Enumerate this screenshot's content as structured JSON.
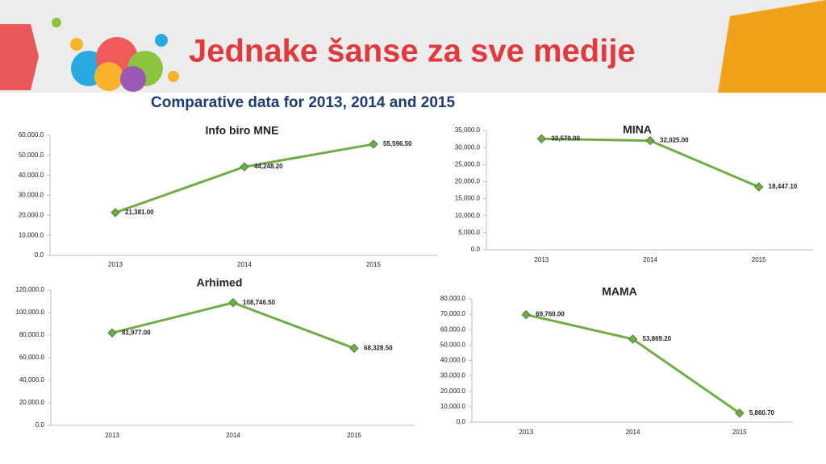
{
  "header": {
    "title": "Jednake šanse za sve medije",
    "subtitle": "Comparative data for 2013, 2014 and 2015"
  },
  "chart_data": [
    {
      "type": "line",
      "title": "Info biro MNE",
      "categories": [
        "2013",
        "2014",
        "2015"
      ],
      "color": "#70ad47",
      "values": [
        21381,
        44248.2,
        55596.5
      ],
      "value_labels": [
        "21,381.00",
        "44,248.20",
        "55,596.50"
      ],
      "ylim": [
        0,
        60000
      ],
      "grid": false,
      "yticks": [
        {
          "value": 0,
          "label": "0.0"
        },
        {
          "value": 10000,
          "label": "10,000.0"
        },
        {
          "value": 20000,
          "label": "20,000.0"
        },
        {
          "value": 30000,
          "label": "30,000.0"
        },
        {
          "value": 40000,
          "label": "40,000.0"
        },
        {
          "value": 50000,
          "label": "50,000.0"
        },
        {
          "value": 60000,
          "label": "60,000.0"
        }
      ]
    },
    {
      "type": "line",
      "title": "MINA",
      "categories": [
        "2013",
        "2014",
        "2015"
      ],
      "color": "#70ad47",
      "values": [
        32570,
        32025,
        18447.1
      ],
      "value_labels": [
        "32,570.00",
        "32,025.00",
        "18,447.10"
      ],
      "ylim": [
        0,
        35000
      ],
      "grid": false,
      "yticks": [
        {
          "value": 0,
          "label": "0.0"
        },
        {
          "value": 5000,
          "label": "5,000.0"
        },
        {
          "value": 10000,
          "label": "10,000.0"
        },
        {
          "value": 15000,
          "label": "15,000.0"
        },
        {
          "value": 20000,
          "label": "20,000.0"
        },
        {
          "value": 25000,
          "label": "25,000.0"
        },
        {
          "value": 30000,
          "label": "30,000.0"
        },
        {
          "value": 35000,
          "label": "35,000.0"
        }
      ]
    },
    {
      "type": "line",
      "title": "Arhimed",
      "categories": [
        "2013",
        "2014",
        "2015"
      ],
      "color": "#70ad47",
      "values": [
        81977,
        108746.5,
        68328.5
      ],
      "value_labels": [
        "81,977.00",
        "108,746.50",
        "68,328.50"
      ],
      "ylim": [
        0,
        120000
      ],
      "grid": false,
      "yticks": [
        {
          "value": 0,
          "label": "0.0"
        },
        {
          "value": 20000,
          "label": "20,000.0"
        },
        {
          "value": 40000,
          "label": "40,000.0"
        },
        {
          "value": 60000,
          "label": "60,000.0"
        },
        {
          "value": 80000,
          "label": "80,000.0"
        },
        {
          "value": 100000,
          "label": "100,000.0"
        },
        {
          "value": 120000,
          "label": "120,000.0"
        }
      ]
    },
    {
      "type": "line",
      "title": "MAMA",
      "categories": [
        "2013",
        "2014",
        "2015"
      ],
      "color": "#70ad47",
      "values": [
        69760,
        53869.2,
        5860.7
      ],
      "value_labels": [
        "69,760.00",
        "53,869.20",
        "5,860.70"
      ],
      "ylim": [
        0,
        80000
      ],
      "grid": false,
      "yticks": [
        {
          "value": 0,
          "label": "0.0"
        },
        {
          "value": 10000,
          "label": "10,000.0"
        },
        {
          "value": 20000,
          "label": "20,000.0"
        },
        {
          "value": 30000,
          "label": "30,000.0"
        },
        {
          "value": 40000,
          "label": "40,000.0"
        },
        {
          "value": 50000,
          "label": "50,000.0"
        },
        {
          "value": 60000,
          "label": "60,000.0"
        },
        {
          "value": 70000,
          "label": "70,000.0"
        },
        {
          "value": 80000,
          "label": "80,000.0"
        }
      ]
    }
  ]
}
